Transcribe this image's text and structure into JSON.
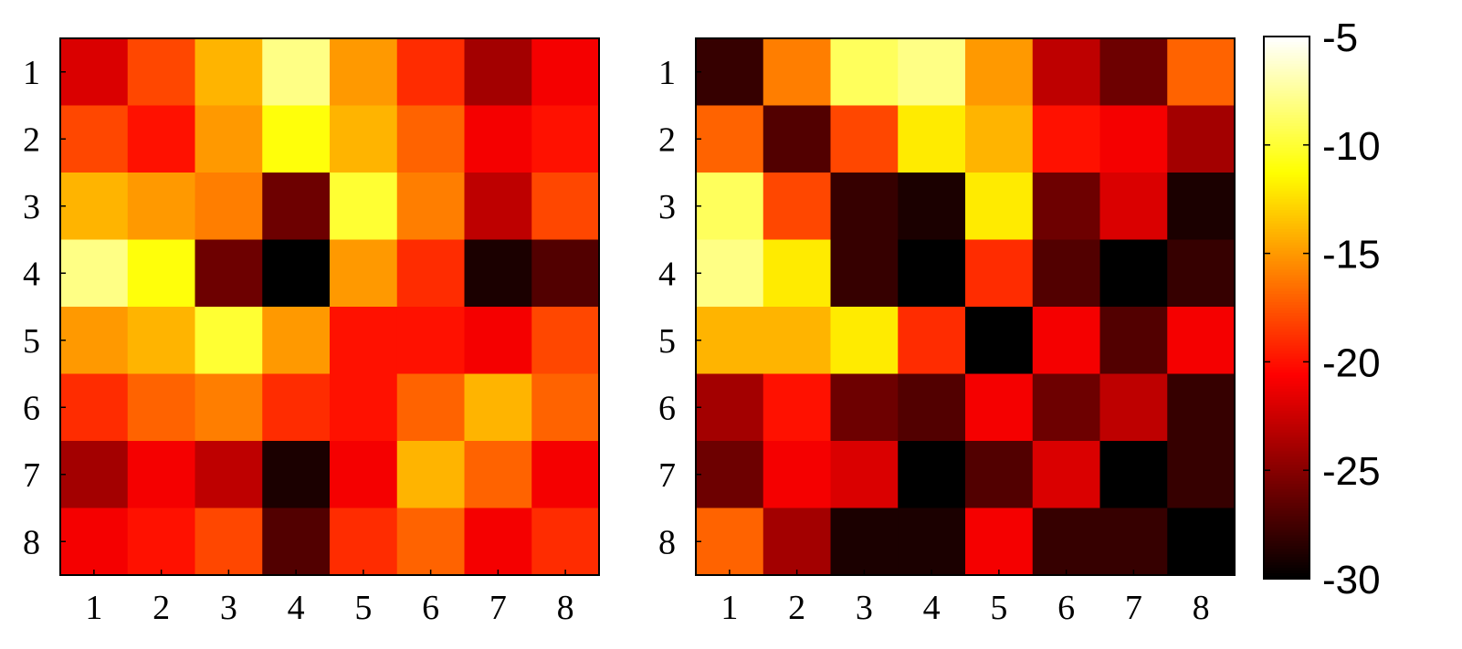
{
  "chart_data": [
    {
      "type": "heatmap",
      "title": "",
      "xlabel": "",
      "ylabel": "",
      "x_tick_labels": [
        "1",
        "2",
        "3",
        "4",
        "5",
        "6",
        "7",
        "8"
      ],
      "y_tick_labels": [
        "1",
        "2",
        "3",
        "4",
        "5",
        "6",
        "7",
        "8"
      ],
      "values": [
        [
          -22,
          -18,
          -14,
          -8,
          -15,
          -19,
          -24,
          -21
        ],
        [
          -18,
          -20,
          -15,
          -11,
          -14,
          -17,
          -21,
          -20
        ],
        [
          -14,
          -15,
          -16,
          -26,
          -10,
          -16,
          -23,
          -18
        ],
        [
          -8,
          -11,
          -26,
          -30,
          -15,
          -19,
          -29,
          -27
        ],
        [
          -15,
          -14,
          -10,
          -15,
          -20,
          -20,
          -21,
          -18
        ],
        [
          -19,
          -17,
          -16,
          -19,
          -20,
          -17,
          -14,
          -17
        ],
        [
          -24,
          -21,
          -23,
          -29,
          -21,
          -14,
          -17,
          -21
        ],
        [
          -21,
          -20,
          -18,
          -27,
          -19,
          -17,
          -21,
          -19
        ]
      ]
    },
    {
      "type": "heatmap",
      "title": "",
      "xlabel": "",
      "ylabel": "",
      "x_tick_labels": [
        "1",
        "2",
        "3",
        "4",
        "5",
        "6",
        "7",
        "8"
      ],
      "y_tick_labels": [
        "1",
        "2",
        "3",
        "4",
        "5",
        "6",
        "7",
        "8"
      ],
      "values": [
        [
          -28,
          -16,
          -9,
          -8,
          -15,
          -23,
          -26,
          -17
        ],
        [
          -17,
          -27,
          -18,
          -12,
          -14,
          -20,
          -21,
          -24
        ],
        [
          -9,
          -18,
          -28,
          -29,
          -12,
          -26,
          -22,
          -29
        ],
        [
          -8,
          -12,
          -28,
          -30,
          -19,
          -27,
          -30,
          -28
        ],
        [
          -14,
          -14,
          -12,
          -19,
          -30,
          -21,
          -27,
          -21
        ],
        [
          -24,
          -20,
          -26,
          -27,
          -21,
          -26,
          -23,
          -28
        ],
        [
          -26,
          -21,
          -22,
          -30,
          -27,
          -22,
          -30,
          -28
        ],
        [
          -17,
          -24,
          -29,
          -29,
          -21,
          -28,
          -28,
          -30
        ]
      ]
    }
  ],
  "colorbar": {
    "colormap": "hot",
    "min": -30,
    "max": -5,
    "tick_labels": [
      "-5",
      "-10",
      "-15",
      "-20",
      "-25",
      "-30"
    ],
    "tick_values": [
      -5,
      -10,
      -15,
      -20,
      -25,
      -30
    ]
  }
}
